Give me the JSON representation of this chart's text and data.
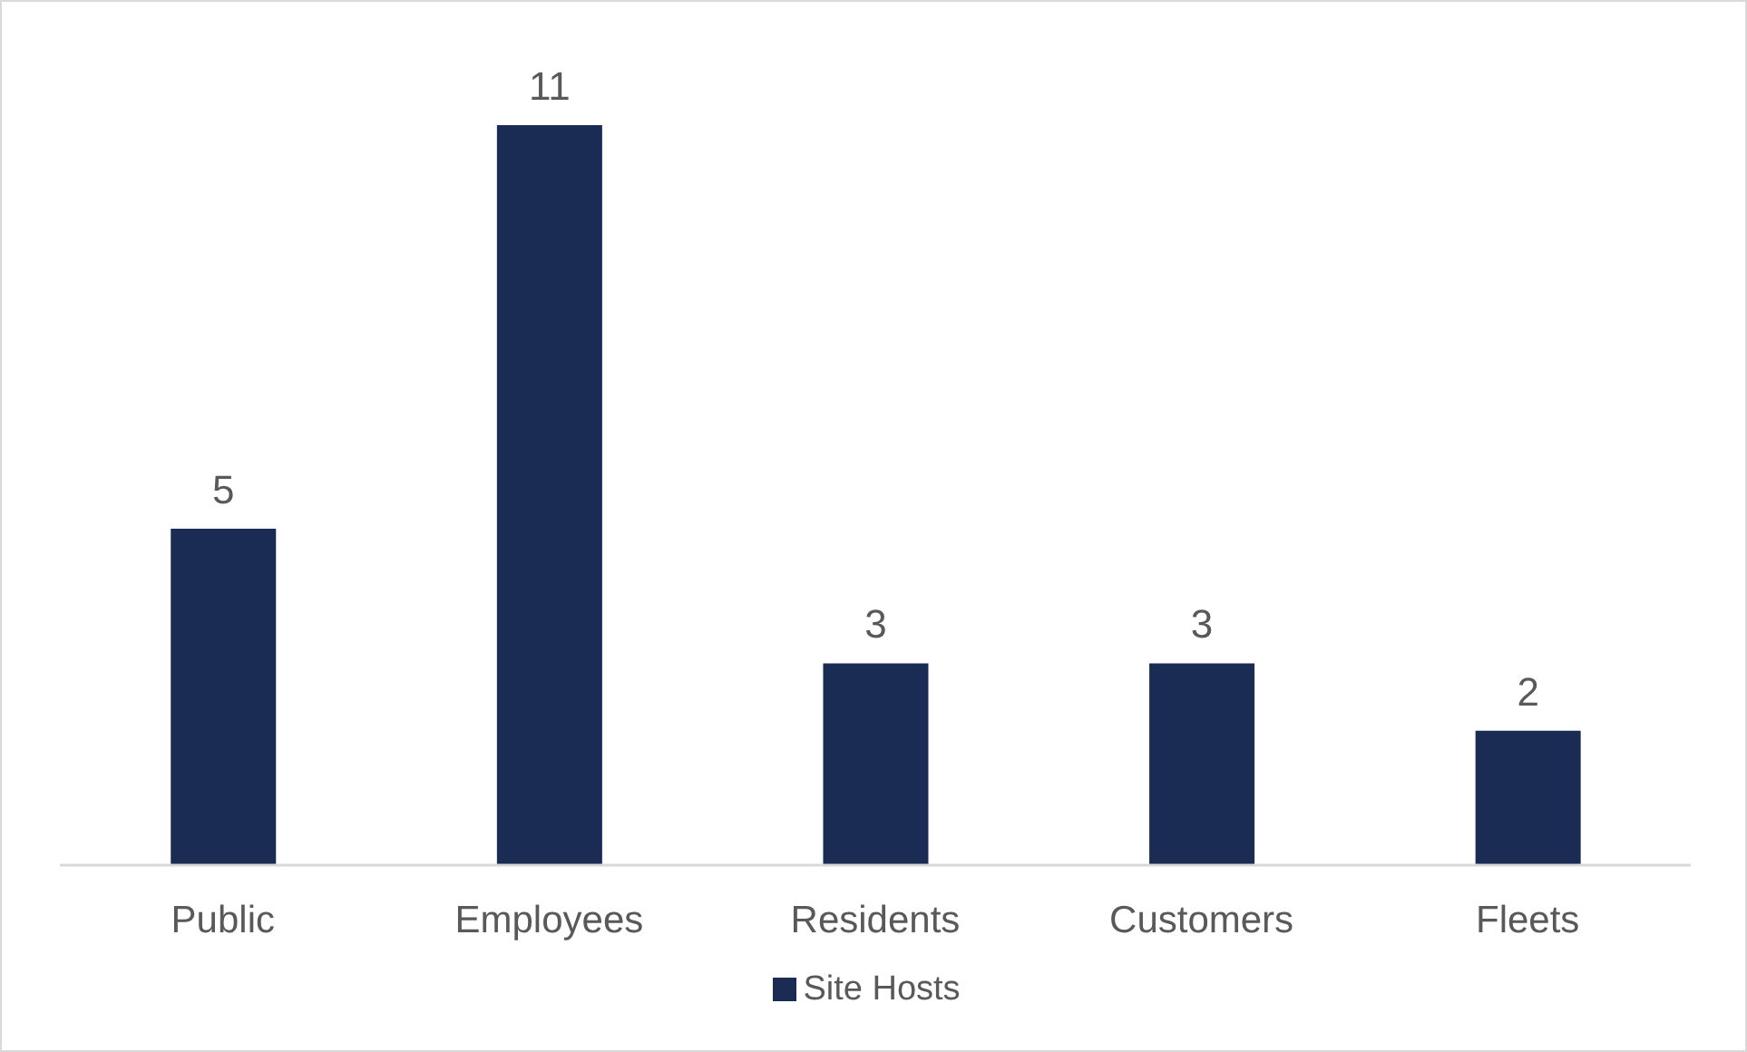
{
  "chart_data": {
    "type": "bar",
    "categories": [
      "Public",
      "Employees",
      "Residents",
      "Customers",
      "Fleets"
    ],
    "series": [
      {
        "name": "Site Hosts",
        "color": "#1a2b54",
        "values": [
          5,
          11,
          3,
          3,
          2
        ]
      }
    ],
    "data_labels": true,
    "legend": "bottom",
    "grid": false
  }
}
